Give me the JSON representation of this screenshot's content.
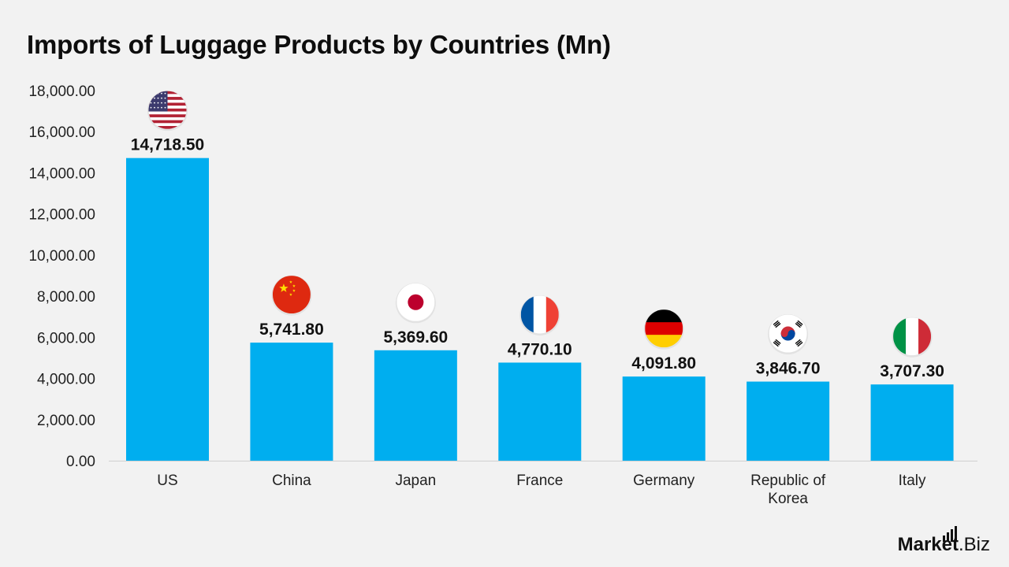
{
  "title": "Imports of Luggage Products by Countries (Mn)",
  "brand": {
    "name_bold": "Market",
    "name_rest": ".Biz",
    "icon": "bar-signal-icon"
  },
  "colors": {
    "bar": "#00aeef",
    "background": "#f2f2f2",
    "axis": "#d0d0d0"
  },
  "chart_data": {
    "type": "bar",
    "title": "Imports of Luggage Products by Countries (Mn)",
    "categories": [
      "US",
      "China",
      "Japan",
      "France",
      "Germany",
      "Republic of Korea",
      "Italy"
    ],
    "category_lines": [
      [
        "US"
      ],
      [
        "China"
      ],
      [
        "Japan"
      ],
      [
        "France"
      ],
      [
        "Germany"
      ],
      [
        "Republic of",
        "Korea"
      ],
      [
        "Italy"
      ]
    ],
    "values": [
      14718.5,
      5741.8,
      5369.6,
      4770.1,
      4091.8,
      3846.7,
      3707.3
    ],
    "value_labels": [
      "14,718.50",
      "5,741.80",
      "5,369.60",
      "4,770.10",
      "4,091.80",
      "3,846.70",
      "3,707.30"
    ],
    "flags": [
      "us-flag-icon",
      "china-flag-icon",
      "japan-flag-icon",
      "france-flag-icon",
      "germany-flag-icon",
      "korea-flag-icon",
      "italy-flag-icon"
    ],
    "ylim": [
      0,
      18000
    ],
    "yticks": [
      0,
      2000,
      4000,
      6000,
      8000,
      10000,
      12000,
      14000,
      16000,
      18000
    ],
    "ytick_labels": [
      "0.00",
      "2,000.00",
      "4,000.00",
      "6,000.00",
      "8,000.00",
      "10,000.00",
      "12,000.00",
      "14,000.00",
      "16,000.00",
      "18,000.00"
    ],
    "xlabel": "",
    "ylabel": "",
    "grid": false,
    "legend": "none"
  }
}
